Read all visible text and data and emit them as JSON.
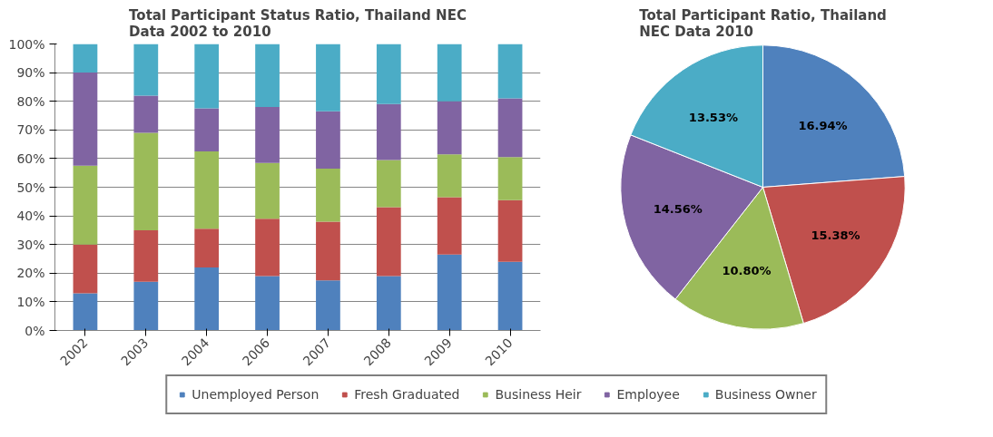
{
  "chart_data": [
    {
      "type": "bar",
      "stacked": true,
      "title": "Total Participant Status Ratio, Thailand NEC Data 2002 to 2010",
      "categories": [
        "2002",
        "2003",
        "2004",
        "2006",
        "2007",
        "2008",
        "2009",
        "2010"
      ],
      "series": [
        {
          "name": "Unemployed Person",
          "color": "#4f81bd",
          "values": [
            13,
            17,
            22,
            19,
            17.5,
            19,
            26.5,
            24
          ]
        },
        {
          "name": "Fresh Graduated",
          "color": "#c0504d",
          "values": [
            17,
            18,
            13.5,
            20,
            20.5,
            24,
            20,
            21.5
          ]
        },
        {
          "name": "Business Heir",
          "color": "#9bbb59",
          "values": [
            27.5,
            34,
            27,
            19.5,
            18.5,
            16.5,
            15,
            15
          ]
        },
        {
          "name": "Employee",
          "color": "#8064a2",
          "values": [
            32.5,
            13,
            15,
            19.5,
            20,
            19.5,
            18.5,
            20.5
          ]
        },
        {
          "name": "Business Owner",
          "color": "#4bacc6",
          "values": [
            10,
            18,
            22.5,
            22,
            23.5,
            21,
            20,
            19
          ]
        }
      ],
      "ylim": [
        0,
        100
      ],
      "yticks": [
        {
          "value": 0,
          "label": "0%"
        },
        {
          "value": 10,
          "label": "10%"
        },
        {
          "value": 20,
          "label": "20%"
        },
        {
          "value": 30,
          "label": "30%"
        },
        {
          "value": 40,
          "label": "40%"
        },
        {
          "value": 50,
          "label": "50%"
        },
        {
          "value": 60,
          "label": "60%"
        },
        {
          "value": 70,
          "label": "70%"
        },
        {
          "value": 80,
          "label": "80%"
        },
        {
          "value": 90,
          "label": "90%"
        },
        {
          "value": 100,
          "label": "100%"
        }
      ],
      "grid": "y",
      "legend": "bottom"
    },
    {
      "type": "pie",
      "title": "Total Participant Ratio, Thailand NEC Data 2010",
      "categories": [
        null,
        null,
        null,
        null,
        null
      ],
      "values": [
        16.94,
        15.38,
        10.8,
        14.56,
        13.53
      ],
      "colors": [
        "#4f81bd",
        "#c0504d",
        "#9bbb59",
        "#8064a2",
        "#4bacc6"
      ],
      "value_labels": [
        "16.94%",
        "15.38%",
        "10.80%",
        "14.56%",
        "13.53%"
      ]
    }
  ]
}
